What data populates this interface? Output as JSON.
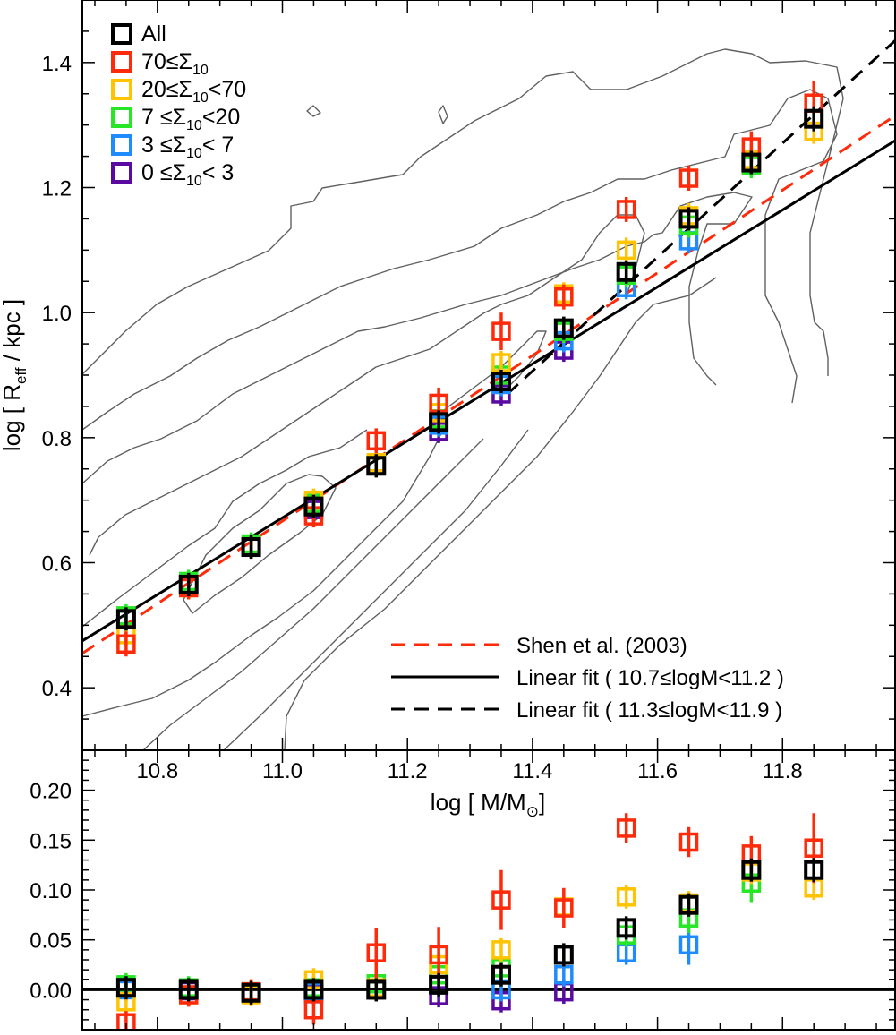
{
  "chart_data": [
    {
      "type": "scatter",
      "panel": "top",
      "ylabel": "log [ R",
      "ylabel_sub": "eff",
      "ylabel_tail": " / kpc ]",
      "xlim": [
        10.68,
        11.98
      ],
      "ylim": [
        0.3,
        1.5
      ],
      "yticks": [
        "0.4",
        "0.6",
        "0.8",
        "1.0",
        "1.2",
        "1.4"
      ],
      "ytick_values": [
        0.4,
        0.6,
        0.8,
        1.0,
        1.2,
        1.4
      ],
      "grid": false,
      "legend_position": "top-left",
      "x": [
        10.75,
        10.85,
        10.95,
        11.05,
        11.15,
        11.25,
        11.35,
        11.45,
        11.55,
        11.65,
        11.75,
        11.85
      ],
      "series": [
        {
          "name": "0 ≤Σ",
          "sub": "10",
          "tail": "< 3",
          "color": "#5a0aa0",
          "values": [
            0.51,
            0.565,
            0.625,
            0.685,
            0.755,
            0.81,
            0.87,
            0.94,
            null,
            null,
            null,
            null
          ],
          "errors": [
            0.01,
            0.01,
            0.01,
            0.01,
            0.01,
            0.01,
            0.01,
            0.01,
            null,
            null,
            null,
            null
          ]
        },
        {
          "name": "3 ≤Σ",
          "sub": "10",
          "tail": "< 7",
          "color": "#1e8cff",
          "values": [
            0.51,
            0.565,
            0.625,
            0.69,
            0.755,
            0.82,
            0.885,
            0.955,
            1.04,
            1.115,
            null,
            null
          ],
          "errors": [
            0.01,
            0.01,
            0.01,
            0.01,
            0.01,
            0.01,
            0.01,
            0.01,
            0.015,
            0.02,
            null,
            null
          ]
        },
        {
          "name": "7 ≤Σ",
          "sub": "10",
          "tail": "<20",
          "color": "#26e626",
          "values": [
            0.515,
            0.57,
            0.63,
            0.695,
            0.76,
            0.83,
            0.9,
            0.97,
            1.06,
            1.14,
            1.235,
            null
          ],
          "errors": [
            0.01,
            0.01,
            0.01,
            0.01,
            0.01,
            0.01,
            0.01,
            0.01,
            0.015,
            0.02,
            0.02,
            null
          ]
        },
        {
          "name": "20≤Σ",
          "sub": "10",
          "tail": "<70",
          "color": "#ffc300",
          "values": [
            0.485,
            0.56,
            0.625,
            0.7,
            0.76,
            0.84,
            0.92,
            1.03,
            1.1,
            1.155,
            1.245,
            1.29
          ],
          "errors": [
            0.01,
            0.01,
            0.01,
            0.01,
            0.01,
            0.015,
            0.015,
            0.015,
            0.02,
            0.02,
            0.02,
            0.02
          ]
        },
        {
          "name": "70≤Σ",
          "sub": "10",
          "tail": "",
          "color": "#ff2a0a",
          "values": [
            0.47,
            0.56,
            0.625,
            0.675,
            0.795,
            0.855,
            0.97,
            1.025,
            1.165,
            1.215,
            1.265,
            1.335
          ],
          "errors": [
            0.02,
            0.015,
            0.01,
            0.015,
            0.02,
            0.025,
            0.03,
            0.02,
            0.02,
            0.02,
            0.025,
            0.035
          ]
        },
        {
          "name": "All",
          "sub": "",
          "tail": "",
          "color": "#000000",
          "values": [
            0.51,
            0.565,
            0.625,
            0.69,
            0.755,
            0.825,
            0.89,
            0.975,
            1.065,
            1.15,
            1.24,
            1.31
          ],
          "errors": [
            0.01,
            0.01,
            0.01,
            0.01,
            0.01,
            0.01,
            0.01,
            0.01,
            0.01,
            0.01,
            0.015,
            0.02
          ]
        }
      ],
      "lines": [
        {
          "name": "Shen et al. (2003)",
          "color": "#ff2a0a",
          "style": "dashed",
          "x": [
            10.68,
            11.98
          ],
          "y": [
            0.455,
            1.315
          ]
        },
        {
          "name": "Linear fit ( 10.7≤logM<11.2 )",
          "color": "#000000",
          "style": "solid",
          "x": [
            10.68,
            11.98
          ],
          "y": [
            0.475,
            1.275
          ]
        },
        {
          "name": "Linear fit ( 11.3≤logM<11.9 )",
          "color": "#000000",
          "style": "dashed",
          "x": [
            11.36,
            11.98
          ],
          "y": [
            0.87,
            1.435
          ]
        }
      ]
    },
    {
      "type": "scatter",
      "panel": "bottom",
      "xlabel": "log [ M/M",
      "xlabel_tail": "]",
      "xticks": [
        "10.8",
        "11.0",
        "11.2",
        "11.4",
        "11.6",
        "11.8"
      ],
      "xtick_values": [
        10.8,
        11.0,
        11.2,
        11.4,
        11.6,
        11.8
      ],
      "yticks": [
        "0.00",
        "0.05",
        "0.10",
        "0.15",
        "0.20"
      ],
      "ytick_values": [
        0.0,
        0.05,
        0.1,
        0.15,
        0.2
      ],
      "xlim": [
        10.68,
        11.98
      ],
      "ylim": [
        -0.04,
        0.24
      ],
      "zero_line": 0.0,
      "x": [
        10.75,
        10.85,
        10.95,
        11.05,
        11.15,
        11.25,
        11.35,
        11.45,
        11.55,
        11.65,
        11.75,
        11.85
      ],
      "series": [
        {
          "name": "0 ≤Σ 10 < 3",
          "color": "#5a0aa0",
          "values": [
            0.002,
            -0.001,
            -0.004,
            -0.004,
            0.0,
            -0.006,
            -0.011,
            -0.002,
            null,
            null,
            null,
            null
          ],
          "errors": [
            0.006,
            0.006,
            0.006,
            0.006,
            0.006,
            0.006,
            0.008,
            0.012,
            null,
            null,
            null,
            null
          ]
        },
        {
          "name": "3 ≤Σ 10 < 7",
          "color": "#1e8cff",
          "values": [
            0.0,
            0.0,
            -0.003,
            -0.002,
            0.0,
            0.005,
            0.0,
            0.015,
            0.037,
            0.045,
            null,
            null
          ],
          "errors": [
            0.005,
            0.005,
            0.005,
            0.006,
            0.006,
            0.008,
            0.008,
            0.01,
            0.012,
            0.02,
            null,
            null
          ]
        },
        {
          "name": "7 ≤Σ 10 <20",
          "color": "#26e626",
          "values": [
            0.005,
            0.002,
            -0.002,
            0.002,
            0.006,
            0.015,
            0.022,
            0.035,
            0.055,
            0.072,
            0.107,
            null
          ],
          "errors": [
            0.005,
            0.005,
            0.005,
            0.006,
            0.006,
            0.008,
            0.008,
            0.01,
            0.012,
            0.015,
            0.02,
            null
          ]
        },
        {
          "name": "20≤Σ 10 <70",
          "color": "#ffc300",
          "values": [
            -0.012,
            -0.005,
            -0.005,
            0.01,
            0.002,
            0.025,
            0.04,
            0.083,
            0.093,
            0.087,
            0.118,
            0.102
          ],
          "errors": [
            0.006,
            0.006,
            0.006,
            0.006,
            0.006,
            0.01,
            0.01,
            0.012,
            0.01,
            0.012,
            0.012,
            0.012
          ]
        },
        {
          "name": "70≤Σ 10",
          "color": "#ff2a0a",
          "values": [
            -0.033,
            -0.005,
            -0.002,
            -0.02,
            0.037,
            0.035,
            0.09,
            0.082,
            0.162,
            0.148,
            0.136,
            0.142
          ],
          "errors": [
            0.01,
            0.012,
            0.01,
            0.015,
            0.025,
            0.028,
            0.03,
            0.02,
            0.015,
            0.015,
            0.018,
            0.035
          ]
        },
        {
          "name": "All",
          "color": "#000000",
          "values": [
            0.002,
            0.0,
            -0.003,
            0.0,
            0.0,
            0.005,
            0.015,
            0.035,
            0.062,
            0.085,
            0.12,
            0.12
          ],
          "errors": [
            0.004,
            0.004,
            0.004,
            0.004,
            0.004,
            0.005,
            0.006,
            0.007,
            0.008,
            0.01,
            0.01,
            0.012
          ]
        }
      ]
    }
  ]
}
